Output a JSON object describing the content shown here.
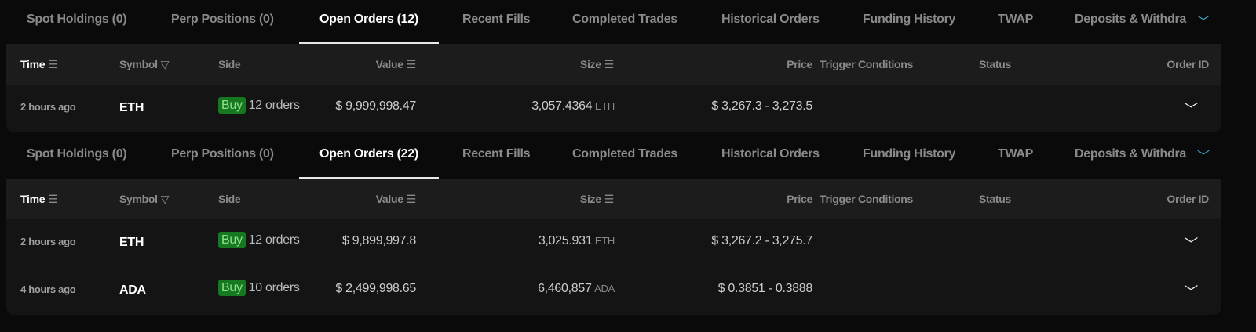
{
  "blocks": [
    {
      "tabs": [
        "Spot Holdings (0)",
        "Perp Positions (0)",
        "Open Orders (12)",
        "Recent Fills",
        "Completed Trades",
        "Historical Orders",
        "Funding History",
        "TWAP",
        "Deposits & Withdra"
      ],
      "active_tab": 2,
      "columns": {
        "time": "Time",
        "symbol": "Symbol",
        "side": "Side",
        "value": "Value",
        "size": "Size",
        "price": "Price",
        "trigger": "Trigger Conditions",
        "status": "Status",
        "order_id": "Order ID"
      },
      "rows": [
        {
          "time": "2 hours ago",
          "symbol": "ETH",
          "side": "Buy",
          "orders": "12 orders",
          "value": "$ 9,999,998.47",
          "size": "3,057.4364",
          "size_unit": "ETH",
          "price": "$ 3,267.3 - 3,273.5"
        }
      ]
    },
    {
      "tabs": [
        "Spot Holdings (0)",
        "Perp Positions (0)",
        "Open Orders (22)",
        "Recent Fills",
        "Completed Trades",
        "Historical Orders",
        "Funding History",
        "TWAP",
        "Deposits & Withdra"
      ],
      "active_tab": 2,
      "columns": {
        "time": "Time",
        "symbol": "Symbol",
        "side": "Side",
        "value": "Value",
        "size": "Size",
        "price": "Price",
        "trigger": "Trigger Conditions",
        "status": "Status",
        "order_id": "Order ID"
      },
      "rows": [
        {
          "time": "2 hours ago",
          "symbol": "ETH",
          "side": "Buy",
          "orders": "12 orders",
          "value": "$ 9,899,997.8",
          "size": "3,025.931",
          "size_unit": "ETH",
          "price": "$ 3,267.2 - 3,275.7"
        },
        {
          "time": "4 hours ago",
          "symbol": "ADA",
          "side": "Buy",
          "orders": "10 orders",
          "value": "$ 2,499,998.65",
          "size": "6,460,857",
          "size_unit": "ADA",
          "price": "$ 0.3851 - 0.3888"
        }
      ]
    }
  ],
  "icons": {
    "sort": "sort-lines-icon",
    "filter": "funnel-icon",
    "more": "chevron-down-icon",
    "expand": "chevron-down-icon"
  },
  "colors": {
    "buy_bg": "#17791f",
    "buy_text": "#8fe08f",
    "accent": "#3fb1d0"
  }
}
